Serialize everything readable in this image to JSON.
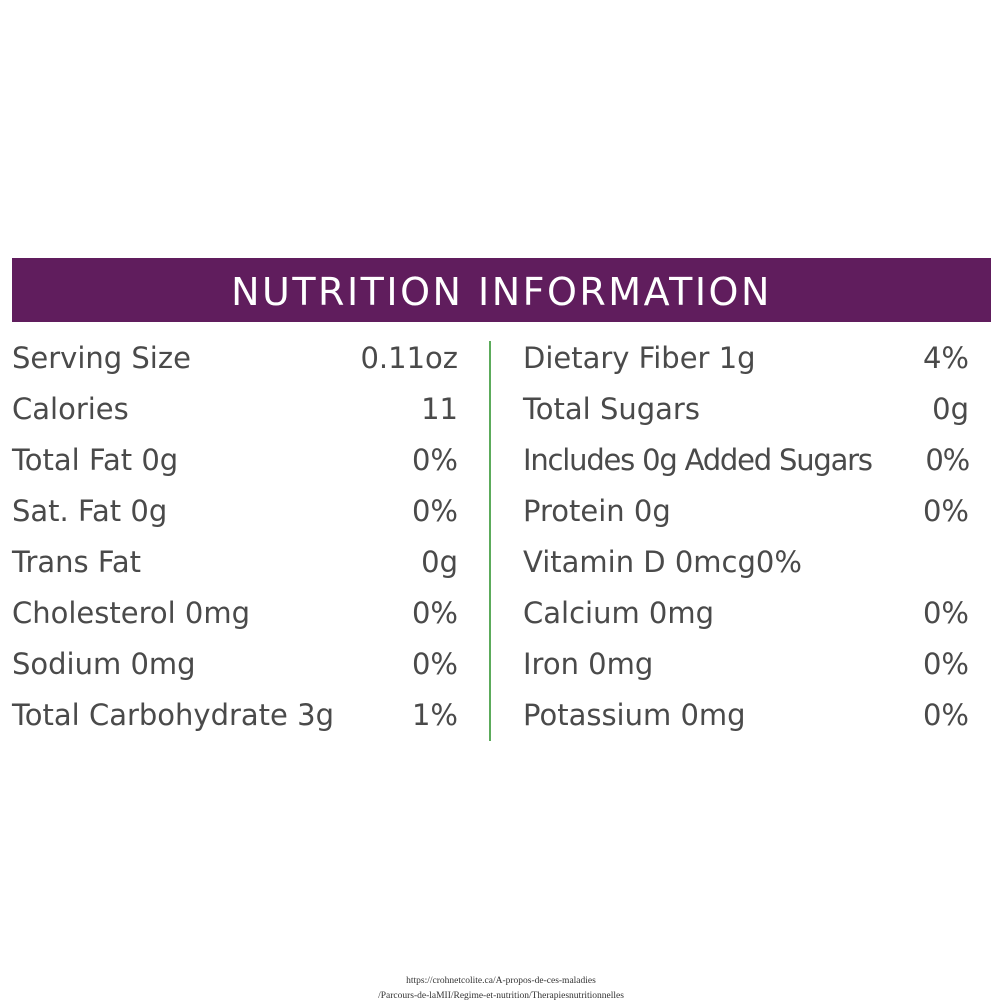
{
  "header": {
    "title": "NUTRITION INFORMATION",
    "background_color": "#601d5d",
    "text_color": "#ffffff"
  },
  "divider_color": "#5cab5b",
  "text_color": "#4a4a4a",
  "left_column": [
    {
      "label": "Serving Size",
      "value": "0.11oz"
    },
    {
      "label": "Calories",
      "value": "11"
    },
    {
      "label": "Total Fat 0g",
      "value": "0%"
    },
    {
      "label": "Sat. Fat 0g",
      "value": "0%"
    },
    {
      "label": "Trans Fat",
      "value": "0g"
    },
    {
      "label": "Cholesterol 0mg",
      "value": "0%"
    },
    {
      "label": "Sodium 0mg",
      "value": "0%"
    },
    {
      "label": "Total Carbohydrate 3g",
      "value": "1%"
    }
  ],
  "right_column": [
    {
      "label": "Dietary Fiber 1g",
      "value": "4%"
    },
    {
      "label": "Total Sugars",
      "value": "0g"
    },
    {
      "label": "Includes 0g Added Sugars",
      "value": "0%"
    },
    {
      "label": "Protein 0g",
      "value": "0%"
    },
    {
      "label": "Vitamin D 0mcg0%",
      "value": ""
    },
    {
      "label": "Calcium 0mg",
      "value": "0%"
    },
    {
      "label": "Iron 0mg",
      "value": "0%"
    },
    {
      "label": "Potassium 0mg",
      "value": "0%"
    }
  ],
  "source": {
    "line1": "https://crohnetcolite.ca/A-propos-de-ces-maladies",
    "line2": "/Parcours-de-laMII/Regime-et-nutrition/Therapiesnutritionnelles"
  }
}
